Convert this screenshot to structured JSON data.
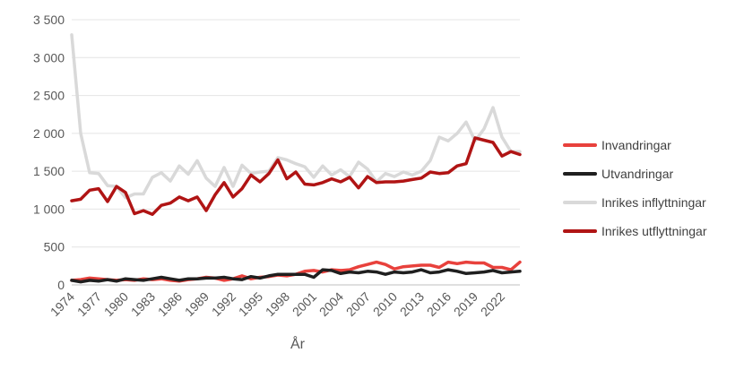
{
  "chart_data": {
    "type": "line",
    "title": "",
    "xlabel": "År",
    "ylabel": "",
    "ylim": [
      0,
      3500
    ],
    "y_ticks": [
      0,
      500,
      1000,
      1500,
      2000,
      2500,
      3000,
      3500
    ],
    "y_tick_labels": [
      "0",
      "500",
      "1 000",
      "1 500",
      "2 000",
      "2 500",
      "3 000",
      "3 500"
    ],
    "x_tick_labels": [
      "1974",
      "1977",
      "1980",
      "1983",
      "1986",
      "1989",
      "1992",
      "1995",
      "1998",
      "2001",
      "2004",
      "2007",
      "2010",
      "2013",
      "2016",
      "2019",
      "2022"
    ],
    "grid": "horizontal",
    "legend_position": "right",
    "x": [
      1974,
      1975,
      1976,
      1977,
      1978,
      1979,
      1980,
      1981,
      1982,
      1983,
      1984,
      1985,
      1986,
      1987,
      1988,
      1989,
      1990,
      1991,
      1992,
      1993,
      1994,
      1995,
      1996,
      1997,
      1998,
      1999,
      2000,
      2001,
      2002,
      2003,
      2004,
      2005,
      2006,
      2007,
      2008,
      2009,
      2010,
      2011,
      2012,
      2013,
      2014,
      2015,
      2016,
      2017,
      2018,
      2019,
      2020,
      2021,
      2022,
      2023,
      2024
    ],
    "series": [
      {
        "name": "Invandringar",
        "color": "#e8413c",
        "values": [
          60,
          70,
          90,
          80,
          70,
          60,
          70,
          60,
          80,
          70,
          80,
          60,
          50,
          70,
          80,
          100,
          90,
          60,
          80,
          120,
          80,
          100,
          110,
          130,
          120,
          140,
          180,
          190,
          170,
          200,
          190,
          200,
          240,
          270,
          300,
          270,
          210,
          240,
          250,
          260,
          260,
          230,
          300,
          280,
          300,
          290,
          290,
          230,
          230,
          200,
          300
        ]
      },
      {
        "name": "Utvandringar",
        "color": "#1f1f1f",
        "values": [
          60,
          40,
          60,
          50,
          70,
          50,
          80,
          70,
          60,
          80,
          100,
          80,
          60,
          80,
          80,
          90,
          90,
          100,
          80,
          70,
          110,
          90,
          120,
          140,
          140,
          140,
          140,
          100,
          200,
          190,
          150,
          170,
          160,
          180,
          170,
          140,
          170,
          160,
          170,
          200,
          160,
          170,
          200,
          180,
          150,
          160,
          170,
          190,
          160,
          170,
          180
        ]
      },
      {
        "name": "Inrikes inflyttningar",
        "color": "#d9d9d9",
        "values": [
          3300,
          2000,
          1480,
          1470,
          1310,
          1300,
          1150,
          1200,
          1200,
          1420,
          1480,
          1370,
          1570,
          1460,
          1640,
          1410,
          1300,
          1550,
          1300,
          1580,
          1470,
          1490,
          1500,
          1680,
          1650,
          1600,
          1560,
          1420,
          1570,
          1450,
          1520,
          1430,
          1620,
          1530,
          1360,
          1470,
          1430,
          1490,
          1450,
          1500,
          1640,
          1950,
          1900,
          2000,
          2150,
          1900,
          2060,
          2340,
          1950,
          1760,
          1760
        ]
      },
      {
        "name": "Inrikes utflyttningar",
        "color": "#b01414",
        "values": [
          1110,
          1130,
          1250,
          1270,
          1100,
          1300,
          1220,
          940,
          980,
          930,
          1050,
          1080,
          1160,
          1110,
          1160,
          980,
          1190,
          1350,
          1160,
          1270,
          1450,
          1360,
          1470,
          1650,
          1400,
          1490,
          1330,
          1320,
          1350,
          1400,
          1360,
          1420,
          1280,
          1430,
          1350,
          1360,
          1360,
          1370,
          1390,
          1410,
          1490,
          1470,
          1480,
          1570,
          1600,
          1940,
          1910,
          1880,
          1700,
          1760,
          1720
        ]
      }
    ]
  }
}
